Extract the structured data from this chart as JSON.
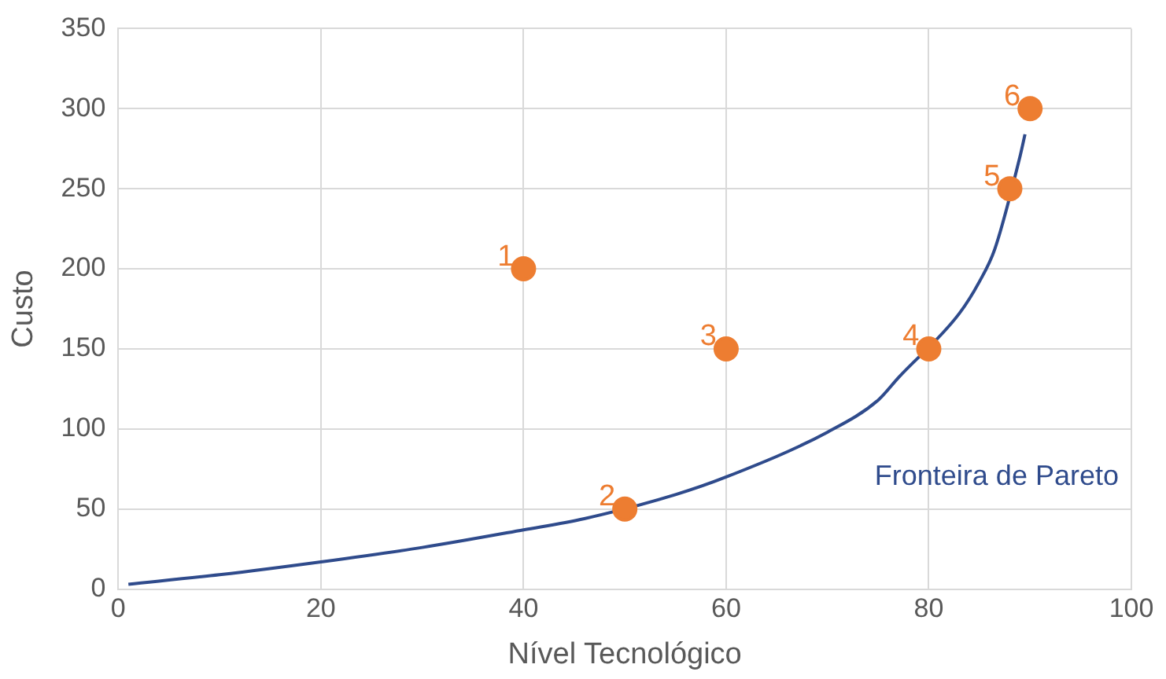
{
  "chart_data": {
    "type": "scatter",
    "xlabel": "Nível Tecnológico",
    "ylabel": "Custo",
    "xlim": [
      0,
      100
    ],
    "xticks": [
      0,
      20,
      40,
      60,
      80,
      100
    ],
    "ylim": [
      0,
      350
    ],
    "yticks": [
      0,
      50,
      100,
      150,
      200,
      250,
      300,
      350
    ],
    "grid": true,
    "legend": false,
    "marker": "circle",
    "series": [
      {
        "color": "#ed7d31",
        "x": [
          40,
          50,
          60,
          80,
          88,
          90
        ],
        "values": [
          200,
          50,
          150,
          150,
          250,
          300
        ]
      },
      {
        "type": "line",
        "name": "Fronteira de Pareto",
        "color": "#2f4b8c",
        "marker": "none",
        "x": [
          1,
          10,
          20,
          30,
          40,
          46,
          55,
          60,
          70,
          75,
          77,
          83,
          85,
          86.5,
          89,
          89.5
        ],
        "values": [
          3,
          9,
          17,
          26,
          37,
          44,
          59,
          70,
          98,
          118,
          132,
          172,
          192,
          212,
          270,
          284
        ]
      }
    ],
    "annotations": [
      {
        "text": "1",
        "x": 40,
        "y": 200
      },
      {
        "text": "2",
        "x": 50,
        "y": 50
      },
      {
        "text": "3",
        "x": 60,
        "y": 150
      },
      {
        "text": "4",
        "x": 80,
        "y": 150
      },
      {
        "text": "5",
        "x": 88,
        "y": 250
      },
      {
        "text": "6",
        "x": 90,
        "y": 300
      }
    ]
  }
}
